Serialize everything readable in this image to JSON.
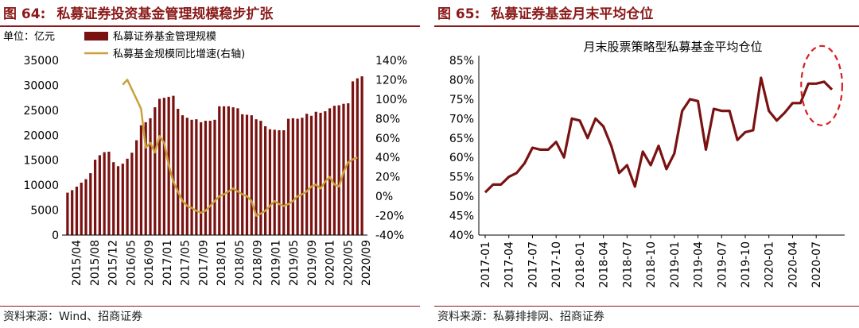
{
  "left": {
    "figure_no": "图 64:",
    "title": "私募证券投资基金管理规模稳步扩张",
    "source": "资料来源：Wind、招商证券"
  },
  "right": {
    "figure_no": "图 65:",
    "title": "私募证券基金月末平均仓位",
    "source": "资料来源：私募排排网、招商证券"
  },
  "colors": {
    "accent": "#8b1a1a",
    "bar": "#7a1212",
    "line_gold": "#c9a03c",
    "ellipse": "#d62020"
  },
  "chart_data": [
    {
      "type": "bar",
      "unit_label": "单位：亿元",
      "title": "",
      "legend": [
        "私募证券基金管理规模",
        "私募基金规模同比增速(右轴)"
      ],
      "y_ticks": [
        "35000",
        "30000",
        "25000",
        "20000",
        "15000",
        "10000",
        "5000",
        "0"
      ],
      "y2_ticks": [
        "140%",
        "120%",
        "100%",
        "80%",
        "60%",
        "40%",
        "20%",
        "0%",
        "-20%",
        "-40%"
      ],
      "ylim": [
        0,
        35000
      ],
      "y2lim": [
        -40,
        140
      ],
      "x_tick_labels": [
        "2015/04",
        "2015/08",
        "2015/12",
        "2016/05",
        "2016/09",
        "2017/01",
        "2017/05",
        "2017/09",
        "2018/01",
        "2018/05",
        "2018/09",
        "2019/01",
        "2019/05",
        "2019/09",
        "2020/01",
        "2020/05",
        "2020/09"
      ],
      "series": [
        {
          "name": "私募证券基金管理规模",
          "kind": "bar",
          "values": [
            8500,
            9000,
            9700,
            10500,
            11200,
            12400,
            15100,
            16000,
            16600,
            16700,
            14600,
            13800,
            14300,
            15300,
            16500,
            19000,
            22000,
            22600,
            23400,
            25600,
            27300,
            27500,
            27700,
            27900,
            25300,
            24000,
            23500,
            23100,
            23200,
            22600,
            22900,
            22900,
            23100,
            25800,
            25800,
            25800,
            25600,
            25400,
            24200,
            24100,
            24000,
            23200,
            22900,
            21800,
            21200,
            21100,
            21000,
            21000,
            23300,
            23400,
            23300,
            23500,
            24300,
            23900,
            24700,
            24500,
            24800,
            25400,
            25900,
            26000,
            26300,
            26400,
            30800,
            31400,
            31800
          ]
        },
        {
          "name": "私募基金规模同比增速(右轴)",
          "kind": "line",
          "start_index": 12,
          "values": [
            115,
            120,
            110,
            100,
            90,
            50,
            55,
            45,
            62,
            55,
            32,
            15,
            5,
            -5,
            -10,
            -12,
            -15,
            -17,
            -15,
            -10,
            -5,
            0,
            2,
            5,
            8,
            5,
            2,
            0,
            -5,
            -20,
            -18,
            -15,
            -10,
            -5,
            -8,
            -10,
            -8,
            -5,
            0,
            2,
            5,
            10,
            12,
            8,
            15,
            20,
            12,
            10,
            25,
            35,
            38,
            40
          ]
        }
      ]
    },
    {
      "type": "line",
      "title": "月末股票策略型私募基金平均仓位",
      "y_ticks": [
        "85%",
        "80%",
        "75%",
        "70%",
        "65%",
        "60%",
        "55%",
        "50%",
        "45%",
        "40%"
      ],
      "ylim": [
        40,
        85
      ],
      "x_tick_labels": [
        "2017-01",
        "2017-04",
        "2017-07",
        "2017-10",
        "2018-01",
        "2018-04",
        "2018-07",
        "2018-10",
        "2019-01",
        "2019-04",
        "2019-07",
        "2019-10",
        "2020-01",
        "2020-04",
        "2020-07"
      ],
      "x": [
        "2017-01",
        "2017-02",
        "2017-03",
        "2017-04",
        "2017-05",
        "2017-06",
        "2017-07",
        "2017-08",
        "2017-09",
        "2017-10",
        "2017-11",
        "2017-12",
        "2018-01",
        "2018-02",
        "2018-03",
        "2018-04",
        "2018-05",
        "2018-06",
        "2018-07",
        "2018-08",
        "2018-09",
        "2018-10",
        "2018-11",
        "2018-12",
        "2019-01",
        "2019-02",
        "2019-03",
        "2019-04",
        "2019-05",
        "2019-06",
        "2019-07",
        "2019-08",
        "2019-09",
        "2019-10",
        "2019-11",
        "2019-12",
        "2020-01",
        "2020-02",
        "2020-03",
        "2020-04",
        "2020-05",
        "2020-06",
        "2020-07",
        "2020-08",
        "2020-09"
      ],
      "series": [
        {
          "name": "平均仓位",
          "values": [
            51.0,
            53.0,
            53.0,
            55.0,
            56.0,
            58.5,
            62.5,
            62.0,
            62.0,
            64.0,
            60.0,
            70.0,
            69.5,
            65.0,
            70.0,
            68.0,
            63.0,
            56.0,
            58.0,
            52.5,
            61.5,
            58.0,
            63.0,
            57.0,
            61.0,
            72.0,
            75.0,
            74.5,
            62.0,
            72.5,
            72.0,
            72.0,
            64.5,
            66.5,
            67.0,
            80.5,
            72.0,
            69.5,
            71.5,
            74.0,
            74.0,
            79.0,
            79.0,
            79.5,
            77.5
          ]
        }
      ],
      "annotation": "highlight-last-3-months"
    }
  ]
}
